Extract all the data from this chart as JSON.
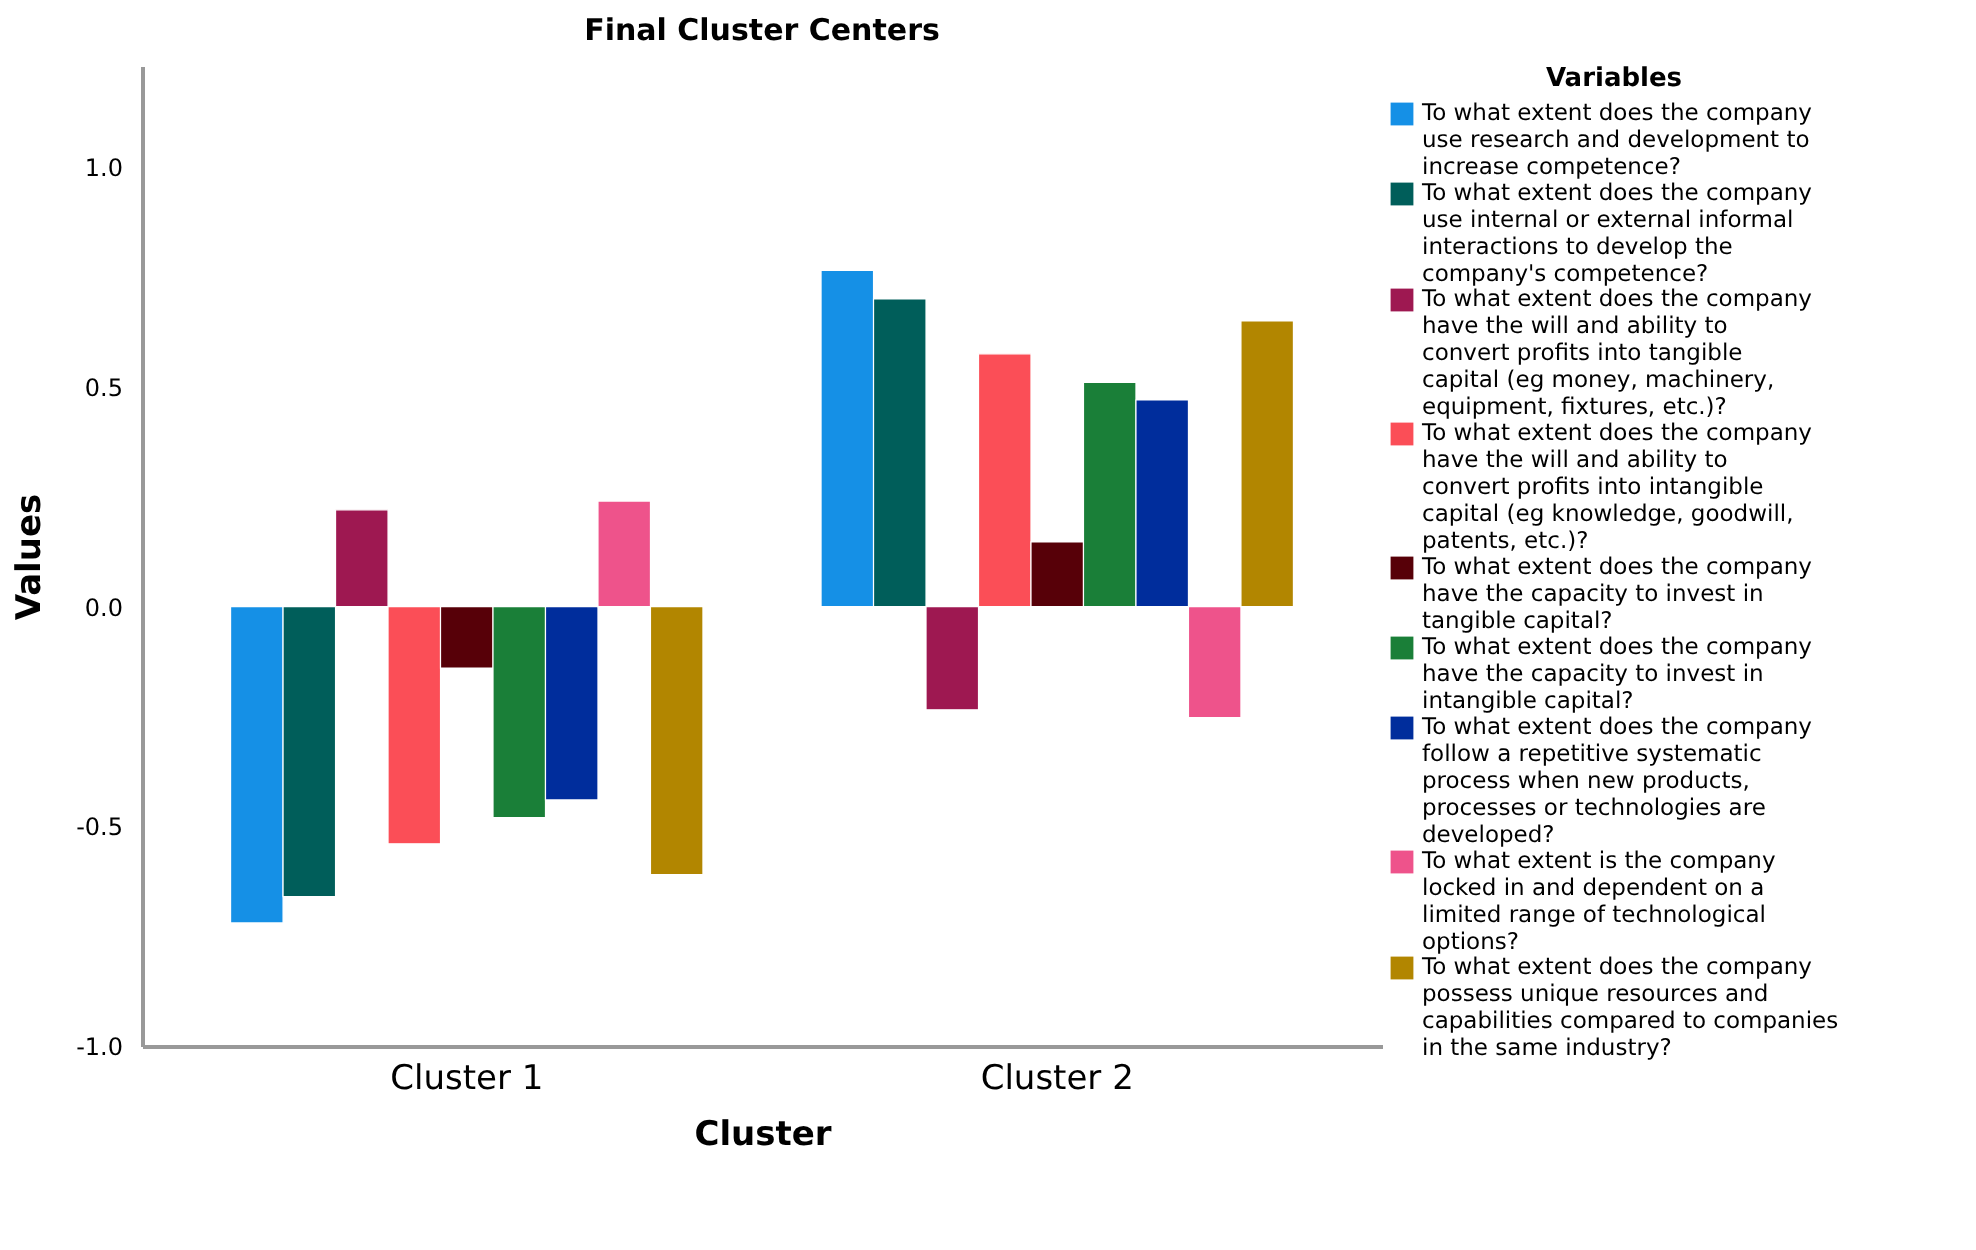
{
  "chart_data": {
    "type": "bar",
    "title": "Final Cluster Centers",
    "xlabel": "Cluster",
    "ylabel": "Values",
    "legend_title": "Variables",
    "categories": [
      "Cluster 1",
      "Cluster 2"
    ],
    "series": [
      {
        "name": "To what extent does the company use research and development to increase competence?",
        "color": "#1590e6",
        "values": [
          -0.72,
          0.765
        ]
      },
      {
        "name": "To what extent does the company use internal or external informal interactions to develop the company's competence?",
        "color": "#005e5a",
        "values": [
          -0.66,
          0.7
        ]
      },
      {
        "name": "To what extent does the company have the will and ability to convert profits into tangible capital (eg money, machinery, equipment, fixtures, etc.)?",
        "color": "#9e1851",
        "values": [
          0.22,
          -0.235
        ]
      },
      {
        "name": "To what extent does the company have the will and ability to convert profits into intangible capital (eg knowledge, goodwill, patents, etc.)?",
        "color": "#fb4e57",
        "values": [
          -0.54,
          0.575
        ]
      },
      {
        "name": "To what extent does the company have the capacity to invest in tangible capital?",
        "color": "#570008",
        "values": [
          -0.14,
          0.147
        ]
      },
      {
        "name": "To what extent does the company have the capacity to invest in intangible capital?",
        "color": "#1a7f38",
        "values": [
          -0.48,
          0.51
        ]
      },
      {
        "name": "To what extent does the company follow a repetitive systematic process when new products, processes or technologies are developed?",
        "color": "#002d9c",
        "values": [
          -0.44,
          0.47
        ]
      },
      {
        "name": "To what extent is the company locked in and dependent on a limited range of technological options?",
        "color": "#ee538b",
        "values": [
          0.24,
          -0.253
        ]
      },
      {
        "name": "To what extent does the company possess unique resources and capabilities compared to companies in the same industry?",
        "color": "#b28600",
        "values": [
          -0.61,
          0.65
        ]
      }
    ],
    "ylim": [
      -1.0,
      1.23
    ],
    "yticks": [
      {
        "value": -1,
        "label": "-1.0"
      },
      {
        "value": -0.5,
        "label": "-0.5"
      },
      {
        "value": 0,
        "label": "0.0"
      },
      {
        "value": 0.5,
        "label": "0.5"
      },
      {
        "value": 1,
        "label": "1.0"
      }
    ],
    "grid": false,
    "legend": "right"
  }
}
